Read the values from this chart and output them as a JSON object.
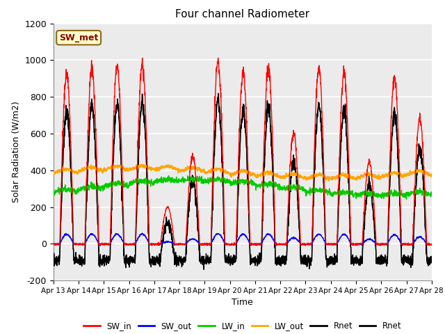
{
  "title": "Four channel Radiometer",
  "ylabel": "Solar Radiation (W/m2)",
  "xlabel": "Time",
  "ylim": [
    -200,
    1200
  ],
  "yticks": [
    -200,
    0,
    200,
    400,
    600,
    800,
    1000,
    1200
  ],
  "xtick_labels": [
    "Apr 13",
    "Apr 14",
    "Apr 15",
    "Apr 16",
    "Apr 17",
    "Apr 18",
    "Apr 19",
    "Apr 20",
    "Apr 21",
    "Apr 22",
    "Apr 23",
    "Apr 24",
    "Apr 25",
    "Apr 26",
    "Apr 27",
    "Apr 28"
  ],
  "annotation_text": "SW_met",
  "annotation_color_bg": "#FFFFCC",
  "annotation_color_border": "#8B6914",
  "annotation_color_text": "#8B0000",
  "plot_bg_color": "#EBEBEB",
  "series": {
    "SW_in": {
      "color": "#FF0000",
      "lw": 1.0
    },
    "SW_out": {
      "color": "#0000FF",
      "lw": 1.0
    },
    "LW_in": {
      "color": "#00CC00",
      "lw": 1.0
    },
    "LW_out": {
      "color": "#FFA500",
      "lw": 1.2
    },
    "Rnet1": {
      "color": "#000000",
      "lw": 1.0
    },
    "Rnet2": {
      "color": "#000000",
      "lw": 1.0
    }
  },
  "legend_entries": [
    "SW_in",
    "SW_out",
    "LW_in",
    "LW_out",
    "Rnet",
    "Rnet"
  ],
  "legend_colors": [
    "#FF0000",
    "#0000FF",
    "#00CC00",
    "#FFA500",
    "#000000",
    "#000000"
  ],
  "sw_in_peaks": [
    920,
    950,
    960,
    970,
    200,
    480,
    990,
    935,
    960,
    600,
    950,
    930,
    445,
    900,
    680
  ],
  "day_start": 13,
  "day_end": 28
}
